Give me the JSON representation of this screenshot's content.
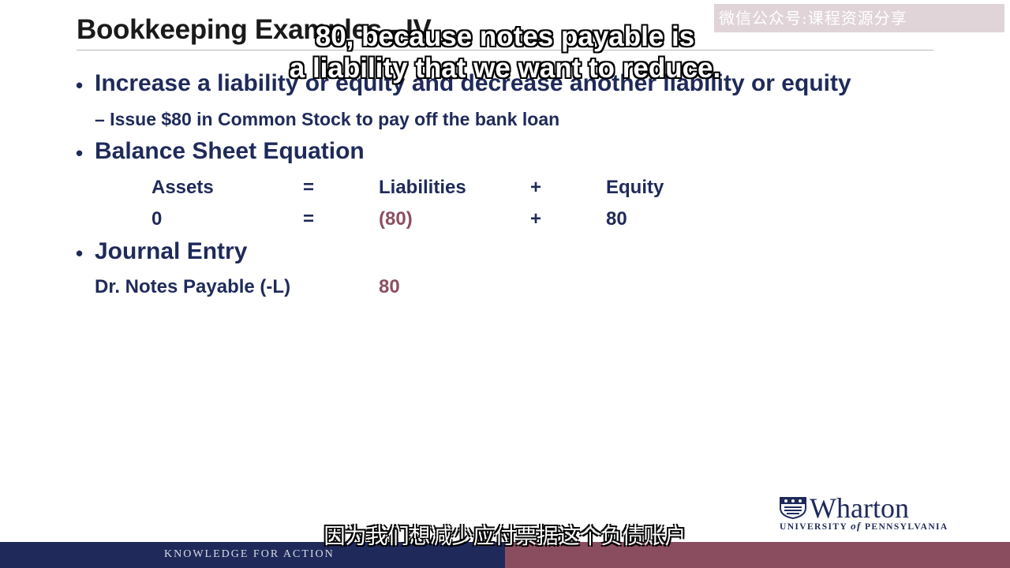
{
  "slide": {
    "title": "Bookkeeping Examples - IV",
    "bullets": [
      {
        "text": "Increase a liability or equity and decrease another liability or equity"
      },
      {
        "text": "Balance Sheet Equation"
      },
      {
        "text": "Journal Entry"
      }
    ],
    "sub_bullet": "– Issue $80 in Common Stock to pay off the bank loan",
    "bullet_symbol": "•"
  },
  "equation": {
    "headers": {
      "assets": "Assets",
      "eq": "=",
      "liabilities": "Liabilities",
      "plus": "+",
      "equity": "Equity"
    },
    "values": {
      "assets": "0",
      "eq": "=",
      "liabilities": "(80)",
      "plus": "+",
      "equity": "80"
    }
  },
  "journal": {
    "account": "Dr. Notes Payable (-L)",
    "amount": "80"
  },
  "captions": {
    "english_line1": "80, because notes payable is",
    "english_line2": "a liability that we want to reduce.",
    "chinese": "因为我们想减少应付票据这个负债账户"
  },
  "watermark": "微信公众号:课程资源分享",
  "logo": {
    "name": "Wharton",
    "sub_prefix": "UNIVERSITY ",
    "sub_of": "of",
    "sub_suffix": " PENNSYLVANIA"
  },
  "footer": {
    "tagline": "KNOWLEDGE FOR ACTION"
  },
  "colors": {
    "navy": "#1f2a5a",
    "maroon": "#8a4d60",
    "accent_text": "#8c4f62"
  }
}
